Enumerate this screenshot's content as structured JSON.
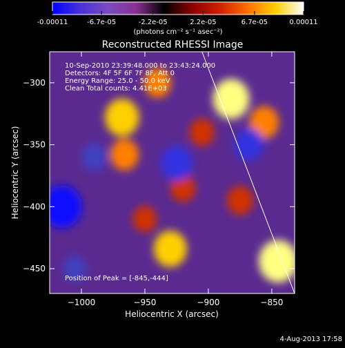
{
  "colorbar": {
    "tick_labels": [
      "-0.00011",
      "-6.7e-05",
      "-2.2e-05",
      "2.2e-05",
      "6.7e-05",
      "0.00011"
    ],
    "tick_values": [
      -0.00011,
      -6.7e-05,
      -2.2e-05,
      2.2e-05,
      6.7e-05,
      0.00011
    ],
    "range": [
      -0.00011,
      0.00011
    ],
    "units": "(photons cm⁻² s⁻¹ asec⁻²)",
    "colors": [
      "#0000ff",
      "#4a32d8",
      "#7a4bc0",
      "#8a3090",
      "#000000",
      "#8b0000",
      "#d02000",
      "#ff7000",
      "#ffd000",
      "#ffffff"
    ]
  },
  "chart_data": {
    "type": "heatmap",
    "title": "Reconstructed RHESSI Image",
    "xlabel": "Heliocentric X (arcsec)",
    "ylabel": "Heliocentric Y (arcsec)",
    "xlim": [
      -1025,
      -832
    ],
    "ylim": [
      -470,
      -275
    ],
    "x_ticks": [
      -1000,
      -950,
      -900,
      -850
    ],
    "y_ticks": [
      -300,
      -350,
      -400,
      -450
    ],
    "x_tick_labels": [
      "−1000",
      "−950",
      "−900",
      "−850"
    ],
    "y_tick_labels": [
      "−300",
      "−350",
      "−400",
      "−450"
    ],
    "annotations": [
      "10-Sep-2010 23:39:48.000 to 23:43:24.000",
      "Detectors: 4F 5F 6F 7F 8F, Att 0",
      "Energy Range: 25.0 - 50.0 keV",
      "Clean    Total counts: 4.41E+03"
    ],
    "peak_label": "Position of Peak = [-845,-444]",
    "peak": [
      -845,
      -444
    ],
    "limb_line": [
      [
        -905,
        -275
      ],
      [
        -832,
        -470
      ]
    ],
    "sources": [
      {
        "x": -845,
        "y": -444,
        "intensity": 0.00011
      },
      {
        "x": -882,
        "y": -313,
        "intensity": 0.0001
      },
      {
        "x": -968,
        "y": -328,
        "intensity": 9e-05
      },
      {
        "x": -930,
        "y": -434,
        "intensity": 8.5e-05
      },
      {
        "x": -856,
        "y": -332,
        "intensity": 7e-05
      },
      {
        "x": -966,
        "y": -358,
        "intensity": 6.5e-05
      },
      {
        "x": -940,
        "y": -300,
        "intensity": 6e-05
      },
      {
        "x": -875,
        "y": -395,
        "intensity": 5.5e-05
      },
      {
        "x": -905,
        "y": -340,
        "intensity": 5e-05
      },
      {
        "x": -920,
        "y": -385,
        "intensity": 5e-05
      },
      {
        "x": -950,
        "y": -410,
        "intensity": 4.5e-05
      },
      {
        "x": -1015,
        "y": -400,
        "intensity": -0.00011
      },
      {
        "x": -925,
        "y": -365,
        "intensity": -8e-05
      },
      {
        "x": -868,
        "y": -350,
        "intensity": -7e-05
      },
      {
        "x": -990,
        "y": -360,
        "intensity": -5e-05
      },
      {
        "x": -1005,
        "y": -450,
        "intensity": -4e-05
      }
    ]
  },
  "footer": {
    "timestamp": "4-Aug-2013 17:58"
  }
}
